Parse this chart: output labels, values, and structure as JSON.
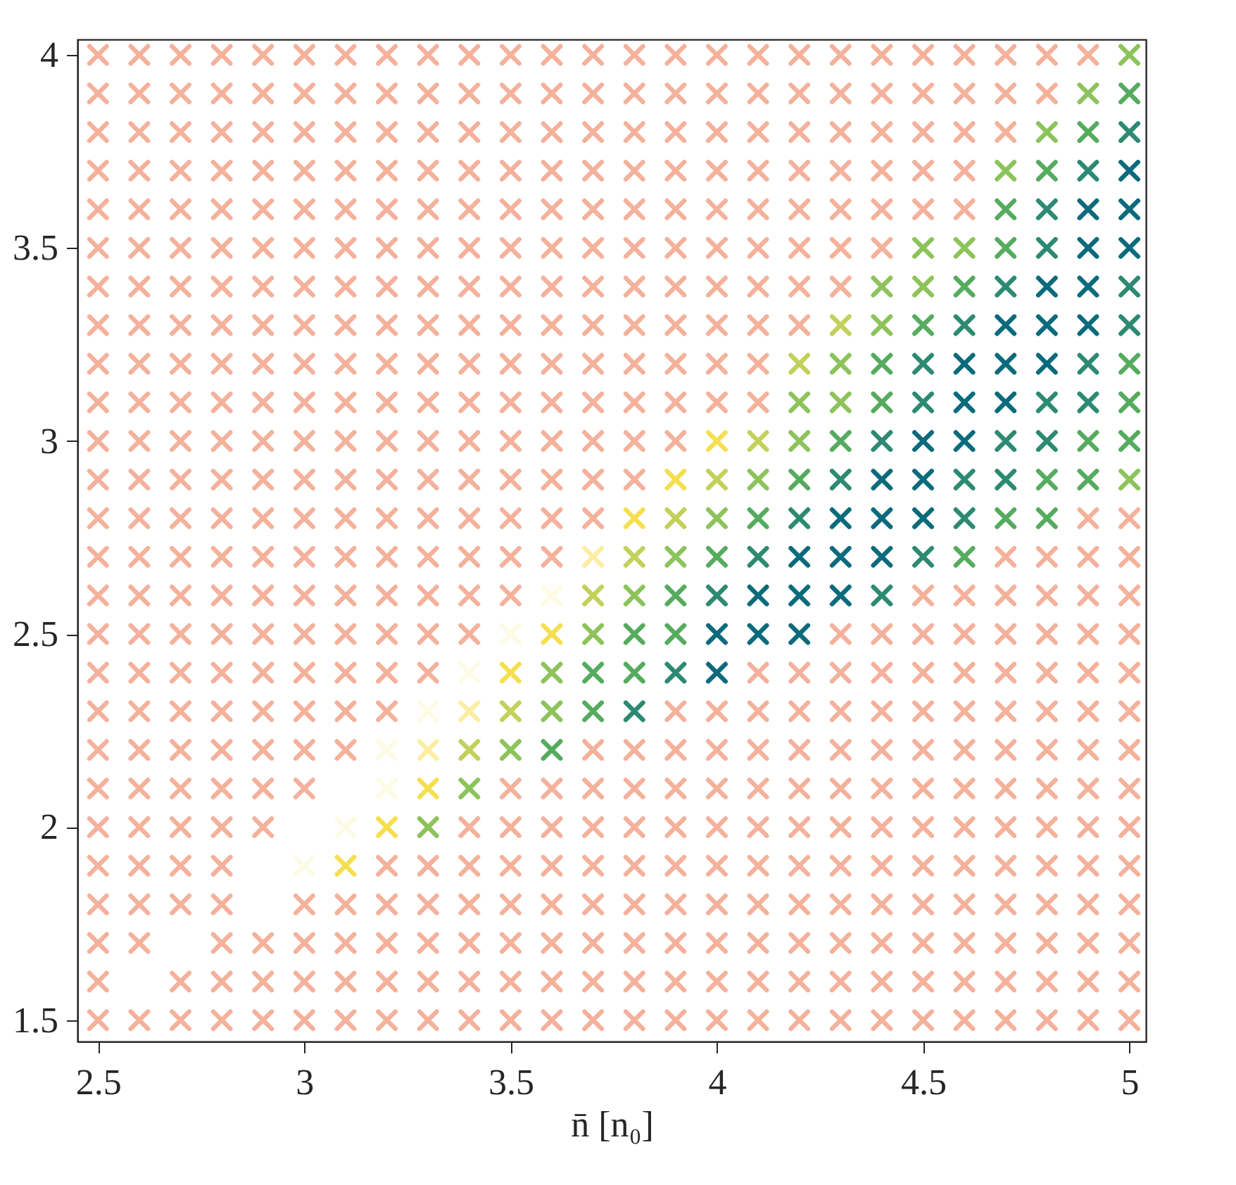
{
  "chart_data": {
    "type": "scatter",
    "xlabel": "n̄ [n₀]",
    "xlim": [
      2.45,
      5.04
    ],
    "ylim": [
      1.445,
      4.04
    ],
    "xticks": [
      2.5,
      3,
      3.5,
      4,
      4.5,
      5
    ],
    "yticks": [
      1.5,
      2,
      2.5,
      3,
      3.5,
      4
    ],
    "grid": false,
    "legend": false,
    "marker": "cross",
    "series": [
      {
        "color": "#f4b19b",
        "x": [
          2.5,
          2.6,
          2.7,
          2.8,
          2.9,
          3.0,
          3.1,
          3.2,
          3.3,
          3.4,
          3.5,
          3.6,
          3.7,
          3.8,
          3.9,
          4.0,
          4.1,
          4.2,
          4.3,
          4.4,
          4.5,
          4.6,
          4.7,
          4.8,
          4.9
        ],
        "values": [
          4.0,
          4.0,
          4.0,
          4.0,
          4.0,
          4.0,
          4.0,
          4.0,
          4.0,
          4.0,
          4.0,
          4.0,
          4.0,
          4.0,
          4.0,
          4.0,
          4.0,
          4.0,
          4.0,
          4.0,
          4.0,
          4.0,
          4.0,
          4.0,
          4.0
        ]
      },
      {
        "color": "#f4b19b",
        "x": [
          2.5,
          2.6,
          2.7,
          2.8,
          2.9,
          3.0,
          3.1,
          3.2,
          3.3,
          3.4,
          3.5,
          3.6,
          3.7,
          3.8,
          3.9,
          4.0,
          4.1,
          4.2,
          4.3,
          4.4,
          4.5,
          4.6,
          4.7,
          4.8
        ],
        "values": [
          3.9,
          3.9,
          3.9,
          3.9,
          3.9,
          3.9,
          3.9,
          3.9,
          3.9,
          3.9,
          3.9,
          3.9,
          3.9,
          3.9,
          3.9,
          3.9,
          3.9,
          3.9,
          3.9,
          3.9,
          3.9,
          3.9,
          3.9,
          3.9
        ]
      },
      {
        "color": "#f4b19b",
        "x": [
          2.5,
          2.6,
          2.7,
          2.8,
          2.9,
          3.0,
          3.1,
          3.2,
          3.3,
          3.4,
          3.5,
          3.6,
          3.7,
          3.8,
          3.9,
          4.0,
          4.1,
          4.2,
          4.3,
          4.4,
          4.5,
          4.6,
          4.7
        ],
        "values": [
          3.8,
          3.8,
          3.8,
          3.8,
          3.8,
          3.8,
          3.8,
          3.8,
          3.8,
          3.8,
          3.8,
          3.8,
          3.8,
          3.8,
          3.8,
          3.8,
          3.8,
          3.8,
          3.8,
          3.8,
          3.8,
          3.8,
          3.8
        ]
      },
      {
        "color": "#f4b19b",
        "x": [
          2.5,
          2.6,
          2.7,
          2.8,
          2.9,
          3.0,
          3.1,
          3.2,
          3.3,
          3.4,
          3.5,
          3.6,
          3.7,
          3.8,
          3.9,
          4.0,
          4.1,
          4.2,
          4.3,
          4.4,
          4.5,
          4.6
        ],
        "values": [
          3.7,
          3.7,
          3.7,
          3.7,
          3.7,
          3.7,
          3.7,
          3.7,
          3.7,
          3.7,
          3.7,
          3.7,
          3.7,
          3.7,
          3.7,
          3.7,
          3.7,
          3.7,
          3.7,
          3.7,
          3.7,
          3.7
        ]
      },
      {
        "color": "#f4b19b",
        "x": [
          2.5,
          2.6,
          2.7,
          2.8,
          2.9,
          3.0,
          3.1,
          3.2,
          3.3,
          3.4,
          3.5,
          3.6,
          3.7,
          3.8,
          3.9,
          4.0,
          4.1,
          4.2,
          4.3,
          4.4,
          4.5,
          4.6
        ],
        "values": [
          3.6,
          3.6,
          3.6,
          3.6,
          3.6,
          3.6,
          3.6,
          3.6,
          3.6,
          3.6,
          3.6,
          3.6,
          3.6,
          3.6,
          3.6,
          3.6,
          3.6,
          3.6,
          3.6,
          3.6,
          3.6,
          3.6
        ]
      },
      {
        "color": "#f4b19b",
        "x": [
          2.5,
          2.6,
          2.7,
          2.8,
          2.9,
          3.0,
          3.1,
          3.2,
          3.3,
          3.4,
          3.5,
          3.6,
          3.7,
          3.8,
          3.9,
          4.0,
          4.1,
          4.2,
          4.3,
          4.4
        ],
        "values": [
          3.5,
          3.5,
          3.5,
          3.5,
          3.5,
          3.5,
          3.5,
          3.5,
          3.5,
          3.5,
          3.5,
          3.5,
          3.5,
          3.5,
          3.5,
          3.5,
          3.5,
          3.5,
          3.5,
          3.5
        ]
      },
      {
        "color": "#f4b19b",
        "x": [
          2.5,
          2.6,
          2.7,
          2.8,
          2.9,
          3.0,
          3.1,
          3.2,
          3.3,
          3.4,
          3.5,
          3.6,
          3.7,
          3.8,
          3.9,
          4.0,
          4.1,
          4.2,
          4.3
        ],
        "values": [
          3.4,
          3.4,
          3.4,
          3.4,
          3.4,
          3.4,
          3.4,
          3.4,
          3.4,
          3.4,
          3.4,
          3.4,
          3.4,
          3.4,
          3.4,
          3.4,
          3.4,
          3.4,
          3.4
        ]
      },
      {
        "color": "#f4b19b",
        "x": [
          2.5,
          2.6,
          2.7,
          2.8,
          2.9,
          3.0,
          3.1,
          3.2,
          3.3,
          3.4,
          3.5,
          3.6,
          3.7,
          3.8,
          3.9,
          4.0,
          4.1,
          4.2
        ],
        "values": [
          3.3,
          3.3,
          3.3,
          3.3,
          3.3,
          3.3,
          3.3,
          3.3,
          3.3,
          3.3,
          3.3,
          3.3,
          3.3,
          3.3,
          3.3,
          3.3,
          3.3,
          3.3
        ]
      },
      {
        "color": "#f4b19b",
        "x": [
          2.5,
          2.6,
          2.7,
          2.8,
          2.9,
          3.0,
          3.1,
          3.2,
          3.3,
          3.4,
          3.5,
          3.6,
          3.7,
          3.8,
          3.9,
          4.0,
          4.1
        ],
        "values": [
          3.2,
          3.2,
          3.2,
          3.2,
          3.2,
          3.2,
          3.2,
          3.2,
          3.2,
          3.2,
          3.2,
          3.2,
          3.2,
          3.2,
          3.2,
          3.2,
          3.2
        ]
      },
      {
        "color": "#f4b19b",
        "x": [
          2.5,
          2.6,
          2.7,
          2.8,
          2.9,
          3.0,
          3.1,
          3.2,
          3.3,
          3.4,
          3.5,
          3.6,
          3.7,
          3.8,
          3.9,
          4.0,
          4.1
        ],
        "values": [
          3.1,
          3.1,
          3.1,
          3.1,
          3.1,
          3.1,
          3.1,
          3.1,
          3.1,
          3.1,
          3.1,
          3.1,
          3.1,
          3.1,
          3.1,
          3.1,
          3.1
        ]
      },
      {
        "color": "#f4b19b",
        "x": [
          2.5,
          2.6,
          2.7,
          2.8,
          2.9,
          3.0,
          3.1,
          3.2,
          3.3,
          3.4,
          3.5,
          3.6,
          3.7,
          3.8,
          3.9
        ],
        "values": [
          3.0,
          3.0,
          3.0,
          3.0,
          3.0,
          3.0,
          3.0,
          3.0,
          3.0,
          3.0,
          3.0,
          3.0,
          3.0,
          3.0,
          3.0
        ]
      },
      {
        "color": "#f4b19b",
        "x": [
          2.5,
          2.6,
          2.7,
          2.8,
          2.9,
          3.0,
          3.1,
          3.2,
          3.3,
          3.4,
          3.5,
          3.6,
          3.7,
          3.8
        ],
        "values": [
          2.9,
          2.9,
          2.9,
          2.9,
          2.9,
          2.9,
          2.9,
          2.9,
          2.9,
          2.9,
          2.9,
          2.9,
          2.9,
          2.9
        ]
      },
      {
        "color": "#f4b19b",
        "x": [
          2.5,
          2.6,
          2.7,
          2.8,
          2.9,
          3.0,
          3.1,
          3.2,
          3.3,
          3.4,
          3.5,
          3.6,
          3.7,
          4.9,
          5.0
        ],
        "values": [
          2.8,
          2.8,
          2.8,
          2.8,
          2.8,
          2.8,
          2.8,
          2.8,
          2.8,
          2.8,
          2.8,
          2.8,
          2.8,
          2.8,
          2.8
        ]
      },
      {
        "color": "#f4b19b",
        "x": [
          2.5,
          2.6,
          2.7,
          2.8,
          2.9,
          3.0,
          3.1,
          3.2,
          3.3,
          3.4,
          3.5,
          3.6,
          4.7,
          4.8,
          4.9,
          5.0
        ],
        "values": [
          2.7,
          2.7,
          2.7,
          2.7,
          2.7,
          2.7,
          2.7,
          2.7,
          2.7,
          2.7,
          2.7,
          2.7,
          2.7,
          2.7,
          2.7,
          2.7
        ]
      },
      {
        "color": "#f4b19b",
        "x": [
          2.5,
          2.6,
          2.7,
          2.8,
          2.9,
          3.0,
          3.1,
          3.2,
          3.3,
          3.4,
          3.5,
          4.5,
          4.6,
          4.7,
          4.8,
          4.9,
          5.0
        ],
        "values": [
          2.6,
          2.6,
          2.6,
          2.6,
          2.6,
          2.6,
          2.6,
          2.6,
          2.6,
          2.6,
          2.6,
          2.6,
          2.6,
          2.6,
          2.6,
          2.6,
          2.6
        ]
      },
      {
        "color": "#f4b19b",
        "x": [
          2.5,
          2.6,
          2.7,
          2.8,
          2.9,
          3.0,
          3.1,
          3.2,
          3.3,
          3.4,
          4.3,
          4.4,
          4.5,
          4.6,
          4.7,
          4.8,
          4.9,
          5.0
        ],
        "values": [
          2.5,
          2.5,
          2.5,
          2.5,
          2.5,
          2.5,
          2.5,
          2.5,
          2.5,
          2.5,
          2.5,
          2.5,
          2.5,
          2.5,
          2.5,
          2.5,
          2.5,
          2.5
        ]
      },
      {
        "color": "#f4b19b",
        "x": [
          2.5,
          2.6,
          2.7,
          2.8,
          2.9,
          3.0,
          3.1,
          3.2,
          3.3,
          4.1,
          4.2,
          4.3,
          4.4,
          4.5,
          4.6,
          4.7,
          4.8,
          4.9,
          5.0
        ],
        "values": [
          2.4,
          2.4,
          2.4,
          2.4,
          2.4,
          2.4,
          2.4,
          2.4,
          2.4,
          2.4,
          2.4,
          2.4,
          2.4,
          2.4,
          2.4,
          2.4,
          2.4,
          2.4,
          2.4
        ]
      },
      {
        "color": "#f4b19b",
        "x": [
          2.5,
          2.6,
          2.7,
          2.8,
          2.9,
          3.0,
          3.1,
          3.2,
          3.9,
          4.0,
          4.1,
          4.2,
          4.3,
          4.4,
          4.5,
          4.6,
          4.7,
          4.8,
          4.9,
          5.0
        ],
        "values": [
          2.3,
          2.3,
          2.3,
          2.3,
          2.3,
          2.3,
          2.3,
          2.3,
          2.3,
          2.3,
          2.3,
          2.3,
          2.3,
          2.3,
          2.3,
          2.3,
          2.3,
          2.3,
          2.3,
          2.3
        ]
      },
      {
        "color": "#f4b19b",
        "x": [
          2.5,
          2.6,
          2.7,
          2.8,
          2.9,
          3.0,
          3.1,
          3.7,
          3.8,
          3.9,
          4.0,
          4.1,
          4.2,
          4.3,
          4.4,
          4.5,
          4.6,
          4.7,
          4.8,
          4.9,
          5.0
        ],
        "values": [
          2.2,
          2.2,
          2.2,
          2.2,
          2.2,
          2.2,
          2.2,
          2.2,
          2.2,
          2.2,
          2.2,
          2.2,
          2.2,
          2.2,
          2.2,
          2.2,
          2.2,
          2.2,
          2.2,
          2.2,
          2.2
        ]
      },
      {
        "color": "#f4b19b",
        "x": [
          2.5,
          2.6,
          2.7,
          2.8,
          2.9,
          3.0,
          3.5,
          3.6,
          3.7,
          3.8,
          3.9,
          4.0,
          4.1,
          4.2,
          4.3,
          4.4,
          4.5,
          4.6,
          4.7,
          4.8,
          4.9,
          5.0
        ],
        "values": [
          2.1,
          2.1,
          2.1,
          2.1,
          2.1,
          2.1,
          2.1,
          2.1,
          2.1,
          2.1,
          2.1,
          2.1,
          2.1,
          2.1,
          2.1,
          2.1,
          2.1,
          2.1,
          2.1,
          2.1,
          2.1,
          2.1
        ]
      },
      {
        "color": "#f4b19b",
        "x": [
          2.5,
          2.6,
          2.7,
          2.8,
          2.9,
          3.4,
          3.5,
          3.6,
          3.7,
          3.8,
          3.9,
          4.0,
          4.1,
          4.2,
          4.3,
          4.4,
          4.5,
          4.6,
          4.7,
          4.8,
          4.9,
          5.0
        ],
        "values": [
          2.0,
          2.0,
          2.0,
          2.0,
          2.0,
          2.0,
          2.0,
          2.0,
          2.0,
          2.0,
          2.0,
          2.0,
          2.0,
          2.0,
          2.0,
          2.0,
          2.0,
          2.0,
          2.0,
          2.0,
          2.0,
          2.0
        ]
      },
      {
        "color": "#f4b19b",
        "x": [
          2.5,
          2.6,
          2.7,
          2.8,
          3.2,
          3.3,
          3.4,
          3.5,
          3.6,
          3.7,
          3.8,
          3.9,
          4.0,
          4.1,
          4.2,
          4.3,
          4.4,
          4.5,
          4.6,
          4.7,
          4.8,
          4.9,
          5.0
        ],
        "values": [
          1.9,
          1.9,
          1.9,
          1.9,
          1.9,
          1.9,
          1.9,
          1.9,
          1.9,
          1.9,
          1.9,
          1.9,
          1.9,
          1.9,
          1.9,
          1.9,
          1.9,
          1.9,
          1.9,
          1.9,
          1.9,
          1.9,
          1.9
        ]
      },
      {
        "color": "#f4b19b",
        "x": [
          2.5,
          2.6,
          2.7,
          2.8,
          3.0,
          3.1,
          3.2,
          3.3,
          3.4,
          3.5,
          3.6,
          3.7,
          3.8,
          3.9,
          4.0,
          4.1,
          4.2,
          4.3,
          4.4,
          4.5,
          4.6,
          4.7,
          4.8,
          4.9,
          5.0
        ],
        "values": [
          1.8,
          1.8,
          1.8,
          1.8,
          1.8,
          1.8,
          1.8,
          1.8,
          1.8,
          1.8,
          1.8,
          1.8,
          1.8,
          1.8,
          1.8,
          1.8,
          1.8,
          1.8,
          1.8,
          1.8,
          1.8,
          1.8,
          1.8,
          1.8,
          1.8
        ]
      },
      {
        "color": "#f4b19b",
        "x": [
          2.5,
          2.6,
          2.8,
          2.9,
          3.0,
          3.1,
          3.2,
          3.3,
          3.4,
          3.5,
          3.6,
          3.7,
          3.8,
          3.9,
          4.0,
          4.1,
          4.2,
          4.3,
          4.4,
          4.5,
          4.6,
          4.7,
          4.8,
          4.9,
          5.0
        ],
        "values": [
          1.7,
          1.7,
          1.7,
          1.7,
          1.7,
          1.7,
          1.7,
          1.7,
          1.7,
          1.7,
          1.7,
          1.7,
          1.7,
          1.7,
          1.7,
          1.7,
          1.7,
          1.7,
          1.7,
          1.7,
          1.7,
          1.7,
          1.7,
          1.7,
          1.7
        ]
      },
      {
        "color": "#f4b19b",
        "x": [
          2.5,
          2.7,
          2.8,
          2.9,
          3.0,
          3.1,
          3.2,
          3.3,
          3.4,
          3.5,
          3.6,
          3.7,
          3.8,
          3.9,
          4.0,
          4.1,
          4.2,
          4.3,
          4.4,
          4.5,
          4.6,
          4.7,
          4.8,
          4.9,
          5.0
        ],
        "values": [
          1.6,
          1.6,
          1.6,
          1.6,
          1.6,
          1.6,
          1.6,
          1.6,
          1.6,
          1.6,
          1.6,
          1.6,
          1.6,
          1.6,
          1.6,
          1.6,
          1.6,
          1.6,
          1.6,
          1.6,
          1.6,
          1.6,
          1.6,
          1.6,
          1.6
        ]
      },
      {
        "color": "#f4b19b",
        "x": [
          2.5,
          2.6,
          2.7,
          2.8,
          2.9,
          3.0,
          3.1,
          3.2,
          3.3,
          3.4,
          3.5,
          3.6,
          3.7,
          3.8,
          3.9,
          4.0,
          4.1,
          4.2,
          4.3,
          4.4,
          4.5,
          4.6,
          4.7,
          4.8,
          4.9,
          5.0
        ],
        "values": [
          1.5,
          1.5,
          1.5,
          1.5,
          1.5,
          1.5,
          1.5,
          1.5,
          1.5,
          1.5,
          1.5,
          1.5,
          1.5,
          1.5,
          1.5,
          1.5,
          1.5,
          1.5,
          1.5,
          1.5,
          1.5,
          1.5,
          1.5,
          1.5,
          1.5,
          1.5
        ]
      },
      {
        "color": "#fdfbe4",
        "x": [
          3.6,
          3.5,
          3.4,
          3.3,
          3.2,
          3.2,
          3.1,
          3.0
        ],
        "values": [
          2.6,
          2.5,
          2.4,
          2.3,
          2.2,
          2.1,
          2.0,
          1.9
        ]
      },
      {
        "color": "#fdeda2",
        "x": [
          3.7,
          3.4,
          3.3
        ],
        "values": [
          2.7,
          2.3,
          2.2
        ]
      },
      {
        "color": "#f5df4f",
        "x": [
          4.0,
          3.9,
          3.8,
          3.6,
          3.5,
          3.3,
          3.2,
          3.1
        ],
        "values": [
          3.0,
          2.9,
          2.8,
          2.5,
          2.4,
          2.1,
          2.0,
          1.9
        ]
      },
      {
        "color": "#c2d15a",
        "x": [
          4.3,
          4.2,
          4.1,
          4.0,
          3.9,
          3.8,
          3.7,
          3.5,
          3.4
        ],
        "values": [
          3.3,
          3.2,
          3.0,
          2.9,
          2.8,
          2.7,
          2.6,
          2.3,
          2.2
        ]
      },
      {
        "color": "#8cc35a",
        "x": [
          5.0,
          4.9,
          4.8,
          4.7,
          4.5,
          4.6,
          4.4,
          4.5,
          4.4,
          4.3,
          4.2,
          4.3,
          4.2,
          4.1,
          5.0,
          4.0,
          3.9,
          3.8,
          3.7,
          3.6,
          3.6,
          3.5,
          3.4,
          3.3
        ],
        "values": [
          4.0,
          3.9,
          3.8,
          3.7,
          3.5,
          3.5,
          3.4,
          3.4,
          3.3,
          3.2,
          3.1,
          3.1,
          3.0,
          2.9,
          2.9,
          2.8,
          2.7,
          2.6,
          2.5,
          2.4,
          2.3,
          2.2,
          2.1,
          2.0
        ]
      },
      {
        "color": "#55ab5e",
        "x": [
          5.0,
          4.9,
          4.8,
          4.7,
          4.7,
          4.6,
          4.5,
          4.4,
          5.0,
          4.4,
          5.0,
          4.3,
          4.9,
          5.0,
          4.2,
          4.8,
          4.9,
          4.1,
          4.7,
          4.8,
          4.0,
          4.6,
          3.9,
          3.8,
          3.9,
          3.7,
          3.8,
          3.7,
          3.6
        ],
        "values": [
          3.9,
          3.8,
          3.7,
          3.6,
          3.5,
          3.4,
          3.3,
          3.2,
          3.2,
          3.1,
          3.1,
          3.0,
          3.0,
          3.0,
          2.9,
          2.9,
          2.9,
          2.8,
          2.8,
          2.8,
          2.7,
          2.7,
          2.6,
          2.5,
          2.5,
          2.4,
          2.4,
          2.3,
          2.2
        ]
      },
      {
        "color": "#2d8a72",
        "x": [
          5.0,
          4.9,
          4.8,
          4.8,
          4.7,
          5.0,
          4.6,
          5.0,
          4.5,
          4.9,
          4.5,
          4.8,
          4.9,
          4.4,
          4.7,
          4.8,
          4.3,
          4.6,
          4.7,
          4.2,
          4.6,
          4.1,
          4.5,
          4.0,
          4.4,
          3.9,
          3.8
        ],
        "values": [
          3.8,
          3.7,
          3.6,
          3.5,
          3.4,
          3.4,
          3.3,
          3.3,
          3.2,
          3.2,
          3.1,
          3.1,
          3.1,
          3.0,
          3.0,
          3.0,
          2.9,
          2.9,
          2.9,
          2.8,
          2.8,
          2.7,
          2.7,
          2.6,
          2.6,
          2.4,
          2.3
        ]
      },
      {
        "color": "#0b6b7c",
        "x": [
          5.0,
          4.9,
          5.0,
          4.9,
          5.0,
          4.8,
          4.9,
          4.7,
          4.8,
          4.9,
          4.6,
          4.7,
          4.8,
          4.6,
          4.7,
          4.5,
          4.6,
          4.4,
          4.5,
          4.3,
          4.4,
          4.5,
          4.2,
          4.3,
          4.4,
          4.1,
          4.2,
          4.3,
          4.0,
          4.1,
          4.2,
          4.0
        ],
        "values": [
          3.7,
          3.6,
          3.6,
          3.5,
          3.5,
          3.4,
          3.4,
          3.3,
          3.3,
          3.3,
          3.2,
          3.2,
          3.2,
          3.1,
          3.1,
          3.0,
          3.0,
          2.9,
          2.9,
          2.8,
          2.8,
          2.8,
          2.7,
          2.7,
          2.7,
          2.6,
          2.6,
          2.6,
          2.5,
          2.5,
          2.5,
          2.4
        ]
      }
    ]
  }
}
